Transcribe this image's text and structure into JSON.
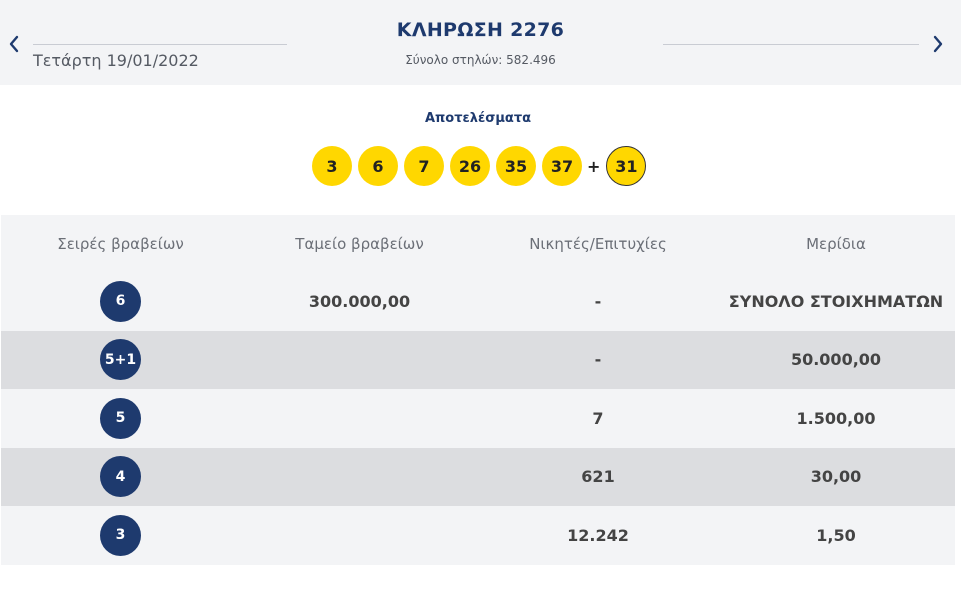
{
  "header": {
    "date": "Τετάρτη 19/01/2022",
    "draw_title": "ΚΛΗΡΩΣΗ 2276",
    "columns_total": "Σύνολο στηλών: 582.496"
  },
  "results": {
    "label": "Αποτελέσματα",
    "numbers": [
      "3",
      "6",
      "7",
      "26",
      "35",
      "37"
    ],
    "plus": "+",
    "joker": "31"
  },
  "table": {
    "headers": [
      "Σειρές βραβείων",
      "Ταμείο βραβείων",
      "Νικητές/Επιτυχίες",
      "Μερίδια"
    ],
    "rows": [
      {
        "category": "6",
        "fund": "300.000,00",
        "winners": "-",
        "share": "ΣΥΝΟΛΟ ΣΤΟΙΧΗΜΑΤΩΝ"
      },
      {
        "category": "5+1",
        "fund": "",
        "winners": "-",
        "share": "50.000,00"
      },
      {
        "category": "5",
        "fund": "",
        "winners": "7",
        "share": "1.500,00"
      },
      {
        "category": "4",
        "fund": "",
        "winners": "621",
        "share": "30,00"
      },
      {
        "category": "3",
        "fund": "",
        "winners": "12.242",
        "share": "1,50"
      }
    ]
  },
  "colors": {
    "navy": "#1e3a6e",
    "ball_yellow": "#ffd700",
    "row_light": "#f3f4f6",
    "row_dark": "#dcdde0"
  },
  "icons": {
    "prev": "chevron-left-icon",
    "next": "chevron-right-icon"
  }
}
